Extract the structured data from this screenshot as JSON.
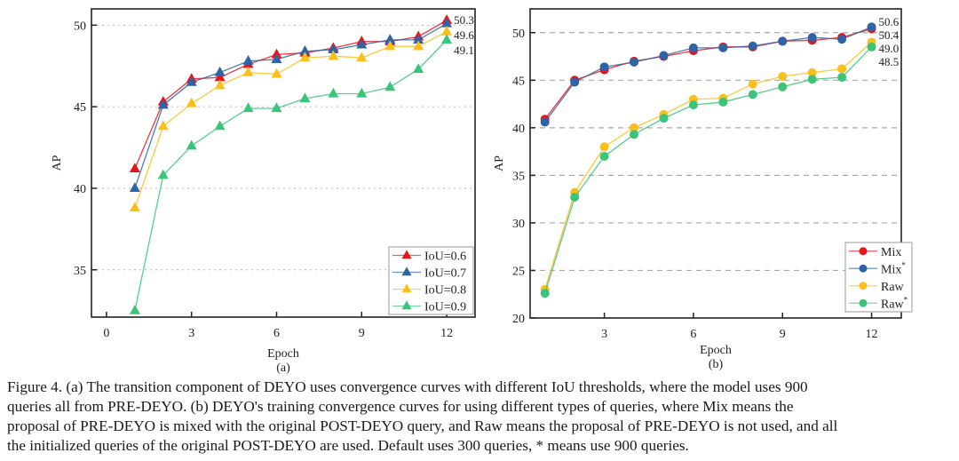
{
  "chart_data": [
    {
      "type": "line",
      "panel_label": "(a)",
      "xlabel": "Epoch",
      "ylabel": "AP",
      "xlim": [
        -0.53,
        13.0
      ],
      "ylim": [
        32.1,
        51.0
      ],
      "xticks": [
        0,
        3,
        6,
        9,
        12
      ],
      "yticks": [
        35,
        40,
        45,
        50
      ],
      "grid": "horizontal-dotted",
      "marker": "triangle",
      "legend_position": "bottom-right",
      "x": [
        1,
        2,
        3,
        4,
        5,
        6,
        7,
        8,
        9,
        10,
        11,
        12
      ],
      "series": [
        {
          "name": "IoU=0.6",
          "color": "#e8141c",
          "values": [
            41.2,
            45.3,
            46.7,
            46.8,
            47.6,
            48.2,
            48.3,
            48.6,
            49.0,
            49.0,
            49.3,
            50.3
          ],
          "end_label": "50.3"
        },
        {
          "name": "IoU=0.7",
          "color": "#2e64a6",
          "values": [
            40.0,
            45.1,
            46.5,
            47.1,
            47.8,
            47.9,
            48.4,
            48.5,
            48.8,
            49.1,
            49.1,
            50.1
          ],
          "end_label": ""
        },
        {
          "name": "IoU=0.8",
          "color": "#fbbf1a",
          "values": [
            38.8,
            43.8,
            45.2,
            46.3,
            47.1,
            47.0,
            48.0,
            48.1,
            48.0,
            48.7,
            48.7,
            49.6
          ],
          "end_label": "49.6"
        },
        {
          "name": "IoU=0.9",
          "color": "#3cc47a",
          "values": [
            32.5,
            40.8,
            42.6,
            43.8,
            44.9,
            44.9,
            45.5,
            45.8,
            45.8,
            46.2,
            47.3,
            49.1
          ],
          "end_label": "49.1"
        }
      ]
    },
    {
      "type": "line",
      "panel_label": "(b)",
      "xlabel": "Epoch",
      "ylabel": "AP",
      "xlim": [
        0.5,
        13.0
      ],
      "ylim": [
        20,
        52.5
      ],
      "xticks": [
        3,
        6,
        9,
        12
      ],
      "yticks": [
        20,
        25,
        30,
        35,
        40,
        45,
        50
      ],
      "grid": "horizontal-dashed",
      "marker": "circle",
      "legend_position": "bottom-right",
      "x": [
        1,
        2,
        3,
        4,
        5,
        6,
        7,
        8,
        9,
        10,
        11,
        12
      ],
      "series": [
        {
          "name": "Mix",
          "sup": "",
          "color": "#e8141c",
          "values": [
            40.9,
            45.0,
            46.1,
            47.0,
            47.5,
            48.1,
            48.5,
            48.5,
            49.1,
            49.2,
            49.5,
            50.4
          ],
          "end_label": "50.4"
        },
        {
          "name": "Mix",
          "sup": "*",
          "color": "#2e64a6",
          "values": [
            40.6,
            44.8,
            46.4,
            46.9,
            47.6,
            48.4,
            48.4,
            48.6,
            49.1,
            49.5,
            49.3,
            50.6
          ],
          "end_label": "50.6"
        },
        {
          "name": "Raw",
          "sup": "",
          "color": "#fbbf1a",
          "values": [
            23.0,
            33.2,
            38.0,
            40.0,
            41.4,
            43.0,
            43.1,
            44.6,
            45.4,
            45.8,
            46.2,
            49.0
          ],
          "end_label": "49.0"
        },
        {
          "name": "Raw",
          "sup": "*",
          "color": "#3cc47a",
          "values": [
            22.6,
            32.7,
            37.0,
            39.3,
            41.0,
            42.4,
            42.7,
            43.5,
            44.3,
            45.1,
            45.3,
            48.5
          ],
          "end_label": "48.5"
        }
      ]
    }
  ],
  "caption": {
    "lines": [
      "Figure 4.  (a) The transition component of DEYO uses convergence curves with different IoU thresholds, where the model uses 900",
      "queries all from PRE-DEYO.  (b) DEYO's training convergence curves for using different types of queries, where Mix means the",
      "proposal of PRE-DEYO is mixed with the original POST-DEYO query, and Raw means the proposal of PRE-DEYO is not used, and all",
      "the initialized queries of the original POST-DEYO are used. Default uses 300 queries, * means use 900 queries."
    ]
  }
}
